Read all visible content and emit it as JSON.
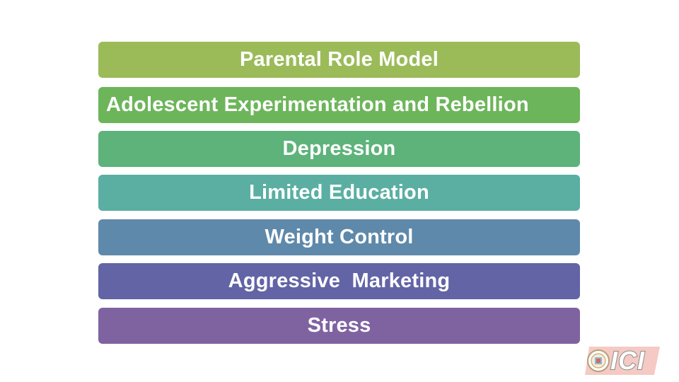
{
  "factors": [
    {
      "label": "Parental Role Model",
      "color": "#9bbb59"
    },
    {
      "label": "Adolescent Experimentation and Rebellion",
      "color": "#6db55a"
    },
    {
      "label": "Depression",
      "color": "#5db37a"
    },
    {
      "label": "Limited Education",
      "color": "#5aafa2"
    },
    {
      "label": "Weight Control",
      "color": "#5f89aa"
    },
    {
      "label": "Aggressive  Marketing",
      "color": "#6264a6"
    },
    {
      "label": "Stress",
      "color": "#7f63a0"
    }
  ],
  "logo": {
    "text": "ICI",
    "accent_color": "#e8534a",
    "icon": "institute-seal-icon"
  }
}
